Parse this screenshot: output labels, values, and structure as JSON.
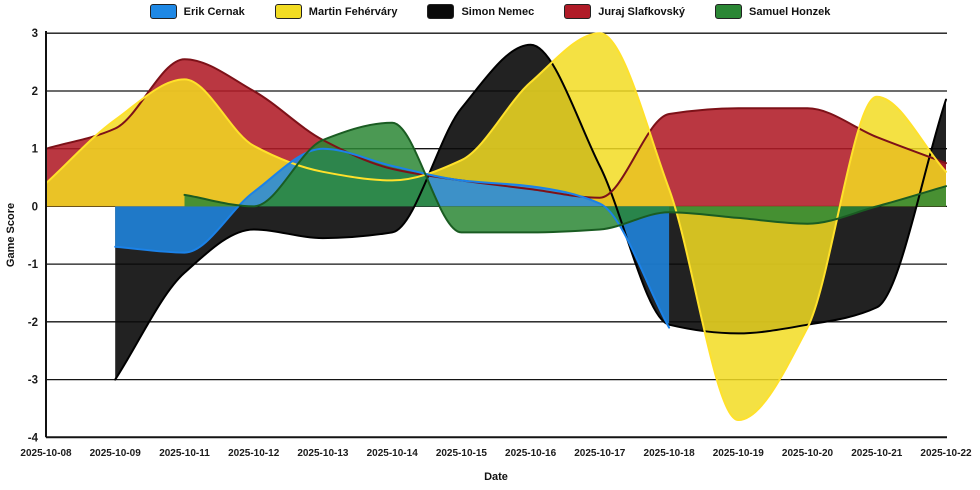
{
  "chart_data": {
    "type": "area",
    "title": "",
    "xlabel": "Date",
    "ylabel": "Game Score",
    "ylim": [
      -4,
      3
    ],
    "yticks": [
      3,
      2,
      1,
      0,
      -1,
      -2,
      -3,
      -4
    ],
    "grid": true,
    "legend_position": "top",
    "x": [
      "2025-10-08",
      "2025-10-09",
      "2025-10-11",
      "2025-10-12",
      "2025-10-13",
      "2025-10-14",
      "2025-10-15",
      "2025-10-16",
      "2025-10-17",
      "2025-10-18",
      "2025-10-19",
      "2025-10-20",
      "2025-10-21",
      "2025-10-22"
    ],
    "series": [
      {
        "name": "Erik Cernak",
        "color": "#1E88E5",
        "line": "#1B82E8",
        "values": [
          null,
          -0.7,
          -0.8,
          0.25,
          1.0,
          0.7,
          0.45,
          0.35,
          0.05,
          -2.1,
          null,
          null,
          null,
          null
        ]
      },
      {
        "name": "Martin Fehérváry",
        "color": "#F2DC22",
        "line": "#FFE12B",
        "values": [
          0.4,
          1.5,
          2.2,
          1.05,
          0.6,
          0.45,
          0.8,
          2.15,
          3.0,
          0.3,
          -3.7,
          -2.1,
          1.9,
          0.6
        ]
      },
      {
        "name": "Simon Nemec",
        "color": "#0A0A0A",
        "line": "#000000",
        "values": [
          null,
          -3.0,
          -1.15,
          -0.4,
          -0.55,
          -0.45,
          1.7,
          2.8,
          0.7,
          -2.05,
          -2.2,
          -2.05,
          -1.75,
          1.85
        ]
      },
      {
        "name": "Juraj Slafkovský",
        "color": "#B01B27",
        "line": "#7D1118",
        "values": [
          1.0,
          1.35,
          2.55,
          2.0,
          1.15,
          0.65,
          0.45,
          0.3,
          0.15,
          1.6,
          1.7,
          1.7,
          1.2,
          0.75
        ]
      },
      {
        "name": "Samuel Honzek",
        "color": "#2B8735",
        "line": "#1A5C22",
        "values": [
          null,
          null,
          0.2,
          0.0,
          1.15,
          1.45,
          -0.45,
          -0.45,
          -0.4,
          -0.1,
          -0.2,
          -0.3,
          0.0,
          0.35
        ]
      }
    ],
    "grid_color": "#141414",
    "tick_color": "#1a1a1a"
  }
}
